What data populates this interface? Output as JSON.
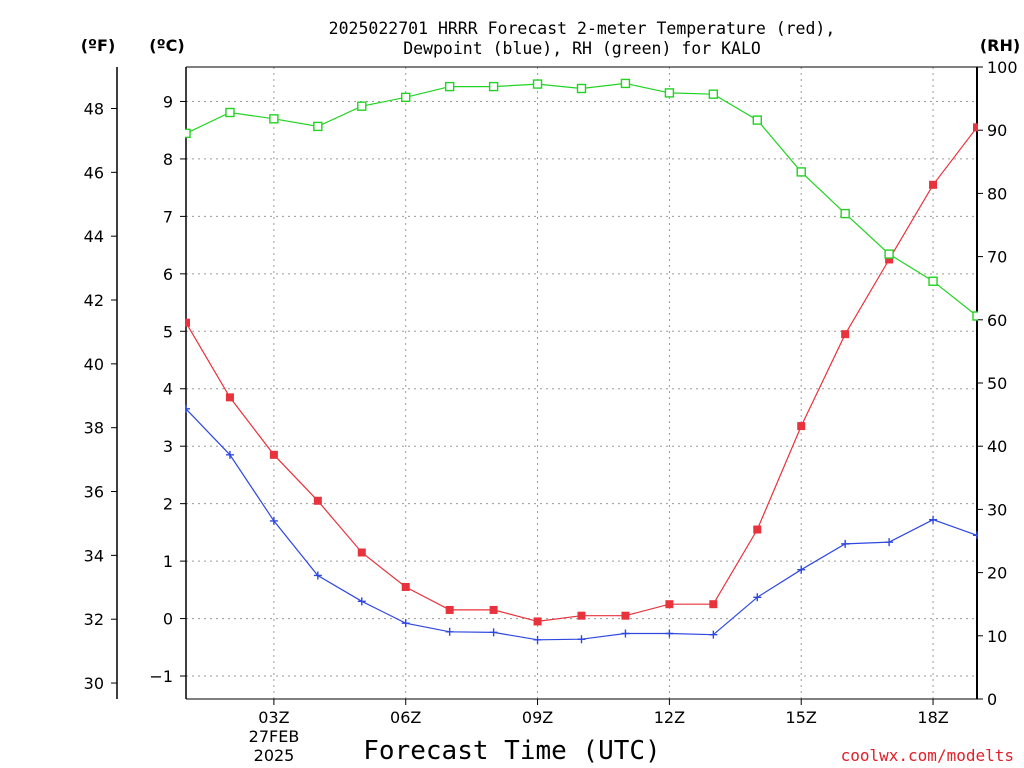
{
  "chart_data": {
    "type": "line",
    "title_lines": [
      "2025022701 HRRR Forecast 2-meter Temperature (red),",
      "Dewpoint (blue), RH (green) for KALO"
    ],
    "xlabel": "Forecast Time (UTC)",
    "x_range": [
      1,
      19
    ],
    "x_ticks": [
      {
        "x": 3,
        "label": "03Z"
      },
      {
        "x": 6,
        "label": "06Z"
      },
      {
        "x": 9,
        "label": "09Z"
      },
      {
        "x": 12,
        "label": "12Z"
      },
      {
        "x": 15,
        "label": "15Z"
      },
      {
        "x": 18,
        "label": "18Z"
      }
    ],
    "date_label": [
      "27FEB",
      "2025"
    ],
    "axes": {
      "fahrenheit": {
        "unit_label": "(ºF)",
        "range": [
          29.5,
          49.3
        ],
        "ticks": [
          30,
          32,
          34,
          36,
          38,
          40,
          42,
          44,
          46,
          48
        ]
      },
      "celsius": {
        "unit_label": "(ºC)",
        "range": [
          -1.4,
          9.6
        ],
        "ticks": [
          -1,
          0,
          1,
          2,
          3,
          4,
          5,
          6,
          7,
          8,
          9
        ]
      },
      "rh": {
        "unit_label": "(RH)",
        "range": [
          0,
          100
        ],
        "ticks": [
          0,
          10,
          20,
          30,
          40,
          50,
          60,
          70,
          80,
          90,
          100
        ]
      }
    },
    "grid": true,
    "x": [
      1,
      2,
      3,
      4,
      5,
      6,
      7,
      8,
      9,
      10,
      11,
      12,
      13,
      14,
      15,
      16,
      17,
      18,
      19
    ],
    "series": [
      {
        "key": "temperature",
        "axis": "celsius",
        "color": "#e8323c",
        "marker": "filled-square",
        "values": [
          5.15,
          3.85,
          2.85,
          2.05,
          1.15,
          0.55,
          0.15,
          0.15,
          -0.05,
          0.05,
          0.05,
          0.25,
          0.25,
          1.55,
          3.35,
          4.95,
          6.25,
          7.55,
          8.55
        ]
      },
      {
        "key": "dewpoint",
        "axis": "celsius",
        "color": "#2f48e0",
        "marker": "plus",
        "values": [
          3.65,
          2.85,
          1.7,
          0.75,
          0.3,
          -0.08,
          -0.23,
          -0.24,
          -0.37,
          -0.36,
          -0.26,
          -0.26,
          -0.28,
          0.37,
          0.85,
          1.3,
          1.33,
          1.72,
          1.45
        ]
      },
      {
        "key": "rh",
        "axis": "rh",
        "color": "#22d322",
        "marker": "open-square",
        "values": [
          89.5,
          92.8,
          91.8,
          90.6,
          93.8,
          95.2,
          96.9,
          96.9,
          97.3,
          96.6,
          97.4,
          95.9,
          95.7,
          91.6,
          83.4,
          76.8,
          70.4,
          66.1,
          60.6
        ]
      }
    ],
    "credit": "coolwx.com/modelts"
  }
}
